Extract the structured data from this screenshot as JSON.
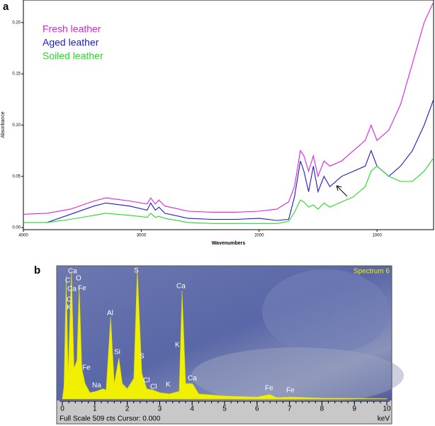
{
  "chart_data": [
    {
      "type": "line",
      "label": "a",
      "xlabel": "Wavenumbers",
      "ylabel": "Absorbance",
      "x": [
        4000,
        3800,
        3600,
        3400,
        3300,
        3100,
        2950,
        2920,
        2880,
        2850,
        2800,
        2600,
        2400,
        2200,
        2000,
        1850,
        1750,
        1700,
        1650,
        1620,
        1580,
        1540,
        1500,
        1450,
        1400,
        1300,
        1200,
        1100,
        1050,
        1000,
        900,
        800,
        700,
        600,
        520
      ],
      "series": [
        {
          "name": "Fresh leather",
          "color": "#e020e0",
          "values": [
            0.013,
            0.014,
            0.018,
            0.026,
            0.029,
            0.026,
            0.023,
            0.029,
            0.023,
            0.027,
            0.021,
            0.016,
            0.015,
            0.015,
            0.016,
            0.018,
            0.025,
            0.04,
            0.075,
            0.07,
            0.055,
            0.07,
            0.05,
            0.065,
            0.06,
            0.065,
            0.075,
            0.085,
            0.1,
            0.085,
            0.095,
            0.12,
            0.16,
            0.2,
            0.22
          ]
        },
        {
          "name": "Aged leather",
          "color": "#1a1acc",
          "values": [
            null,
            0.005,
            0.013,
            0.021,
            0.024,
            0.021,
            0.017,
            0.024,
            0.017,
            0.02,
            0.014,
            0.009,
            0.008,
            0.008,
            0.009,
            0.007,
            0.008,
            0.03,
            0.065,
            0.055,
            0.035,
            0.06,
            0.035,
            0.05,
            0.04,
            0.05,
            0.055,
            0.06,
            0.075,
            0.06,
            0.05,
            0.06,
            0.075,
            0.1,
            0.125
          ]
        },
        {
          "name": "Soiled leather",
          "color": "#22dd22",
          "values": [
            0.005,
            0.005,
            0.008,
            0.012,
            0.014,
            0.012,
            0.01,
            0.014,
            0.01,
            0.011,
            0.009,
            0.005,
            0.004,
            0.004,
            0.004,
            0.004,
            0.006,
            0.015,
            0.027,
            0.025,
            0.02,
            0.022,
            0.018,
            0.024,
            0.02,
            0.025,
            0.03,
            0.04,
            0.055,
            0.06,
            0.05,
            0.045,
            0.045,
            0.055,
            0.068
          ]
        }
      ],
      "xlim": [
        4000,
        520
      ],
      "xticks": [
        4000,
        3000,
        2000,
        1000
      ],
      "ylim": [
        -0.002,
        0.222
      ],
      "yticks": [
        {
          "value": 0,
          "label": "0.00"
        },
        0.05,
        {
          "value": 0.1,
          "label": "0.10"
        },
        0.15,
        {
          "value": 0.2,
          "label": "0.20"
        }
      ]
    },
    {
      "type": "area",
      "label": "b",
      "title": "Spectrum 6",
      "xlabel": "keV",
      "footer": "Full Scale 509 cts Cursor: 0.000",
      "color": "#f0f000",
      "x": [
        0,
        0.05,
        0.12,
        0.18,
        0.28,
        0.36,
        0.45,
        0.52,
        0.6,
        0.7,
        0.85,
        1.04,
        1.25,
        1.35,
        1.49,
        1.6,
        1.74,
        1.85,
        2.0,
        2.2,
        2.31,
        2.45,
        2.6,
        2.8,
        3.0,
        3.3,
        3.6,
        3.69,
        3.8,
        4.01,
        4.2,
        5.0,
        6.0,
        6.4,
        6.6,
        7.06,
        8,
        9,
        10
      ],
      "values": [
        0,
        50,
        480,
        100,
        500,
        120,
        150,
        440,
        120,
        60,
        25,
        30,
        40,
        35,
        320,
        60,
        160,
        60,
        40,
        80,
        505,
        100,
        40,
        35,
        25,
        20,
        30,
        420,
        60,
        60,
        20,
        12,
        8,
        18,
        6,
        8,
        4,
        3,
        2
      ],
      "xlim": [
        0,
        10
      ],
      "xticks": [
        0,
        1,
        2,
        3,
        4,
        5,
        6,
        7,
        8,
        9,
        10
      ],
      "ylim": [
        0,
        509
      ],
      "annotations": [
        "C",
        "Ca",
        "Ca",
        "C",
        "K",
        "O",
        "Fe",
        "Fe",
        "Na",
        "Al",
        "Si",
        "S",
        "S",
        "Cl",
        "Cl",
        "K",
        "Ca",
        "K",
        "Ca",
        "Fe",
        "Fe"
      ]
    }
  ]
}
